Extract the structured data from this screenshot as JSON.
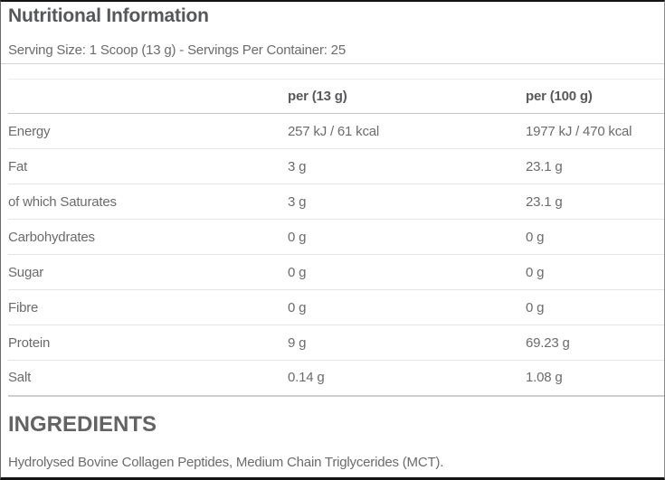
{
  "page": {
    "title": "Nutritional Information",
    "serving_info": "Serving Size: 1 Scoop (13 g) - Servings Per Container: 25"
  },
  "table": {
    "columns": [
      "",
      "per (13 g)",
      "per (100 g)"
    ],
    "rows": [
      {
        "label": "Energy",
        "per_serving": "257 kJ / 61 kcal",
        "per_100g": "1977 kJ / 470 kcal"
      },
      {
        "label": "Fat",
        "per_serving": "3 g",
        "per_100g": "23.1 g"
      },
      {
        "label": "of which Saturates",
        "per_serving": "3 g",
        "per_100g": "23.1 g"
      },
      {
        "label": "Carbohydrates",
        "per_serving": "0 g",
        "per_100g": "0 g"
      },
      {
        "label": "Sugar",
        "per_serving": "0 g",
        "per_100g": "0 g"
      },
      {
        "label": "Fibre",
        "per_serving": "0 g",
        "per_100g": "0 g"
      },
      {
        "label": "Protein",
        "per_serving": "9 g",
        "per_100g": "69.23 g"
      },
      {
        "label": "Salt",
        "per_serving": "0.14 g",
        "per_100g": "1.08 g"
      }
    ]
  },
  "ingredients": {
    "heading": "INGREDIENTS",
    "text": "Hydrolysed Bovine Collagen Peptides, Medium Chain Triglycerides (MCT)."
  },
  "colors": {
    "heading_text": "#565759",
    "body_text": "#6b6b6b",
    "frame_border": "#141414",
    "header_rule": "#c7c7c7",
    "row_rule": "#e5e5e5"
  }
}
